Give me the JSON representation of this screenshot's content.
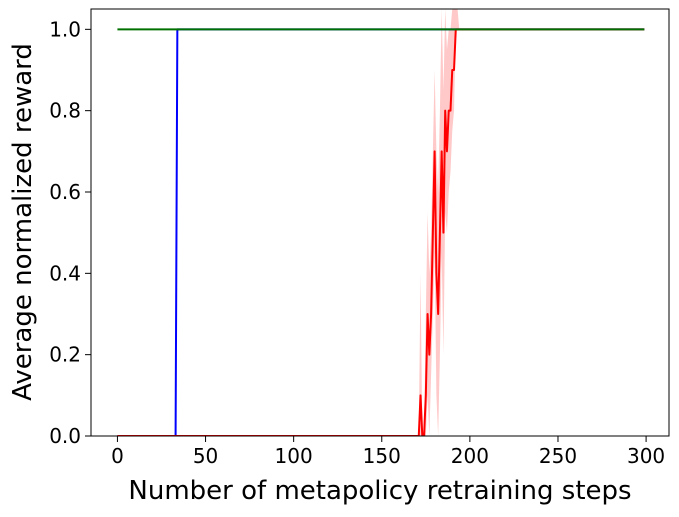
{
  "chart_data": {
    "type": "line",
    "title": "",
    "xlabel": "Number of metapolicy retraining steps",
    "ylabel": "Average normalized reward",
    "xlim": [
      -15,
      313
    ],
    "ylim": [
      0,
      1.05
    ],
    "x_ticks": [
      0,
      50,
      100,
      150,
      200,
      250,
      300
    ],
    "y_ticks": [
      0.0,
      0.2,
      0.4,
      0.6,
      0.8,
      1.0
    ],
    "x_tick_labels": [
      "0",
      "50",
      "100",
      "150",
      "200",
      "250",
      "300"
    ],
    "y_tick_labels": [
      "0.0",
      "0.2",
      "0.4",
      "0.6",
      "0.8",
      "1.0"
    ],
    "grid": false,
    "legend": "none",
    "series": [
      {
        "color": "#0000ff",
        "x": [
          0,
          33,
          34,
          299
        ],
        "y": [
          0,
          0,
          1,
          1
        ]
      },
      {
        "color": "#ff0000",
        "band_color": "#ffc0c0",
        "x": [
          0,
          171,
          172,
          173,
          174,
          175,
          176,
          177,
          178,
          179,
          180,
          181,
          182,
          183,
          184,
          185,
          186,
          187,
          188,
          189,
          190,
          191,
          192,
          193,
          194,
          195,
          299
        ],
        "y": [
          0,
          0,
          0.1,
          0,
          0,
          0.1,
          0.3,
          0.2,
          0.3,
          0.5,
          0.7,
          0.4,
          0.3,
          0.5,
          0.7,
          0.5,
          0.8,
          0.7,
          0.8,
          0.8,
          0.9,
          0.9,
          1.0,
          1.0,
          1.0,
          1.0,
          1.0
        ],
        "lower": [
          0,
          0,
          0,
          0,
          0,
          0,
          0.1,
          0.0,
          0.15,
          0.3,
          0.45,
          0.1,
          0.0,
          0.2,
          0.45,
          0.2,
          0.55,
          0.5,
          0.6,
          0.65,
          0.75,
          0.8,
          1.0,
          1.0,
          1.0,
          1.0,
          1.0
        ],
        "upper": [
          0,
          0,
          0.4,
          0,
          0,
          0.3,
          0.55,
          0.4,
          0.5,
          0.7,
          0.9,
          0.7,
          0.6,
          0.8,
          1.05,
          0.85,
          1.05,
          0.95,
          1.0,
          1.0,
          1.05,
          1.05,
          1.05,
          1.05,
          1.0,
          1.0,
          1.0
        ]
      },
      {
        "color": "#007000",
        "x": [
          0,
          299
        ],
        "y": [
          1,
          1
        ]
      }
    ]
  }
}
